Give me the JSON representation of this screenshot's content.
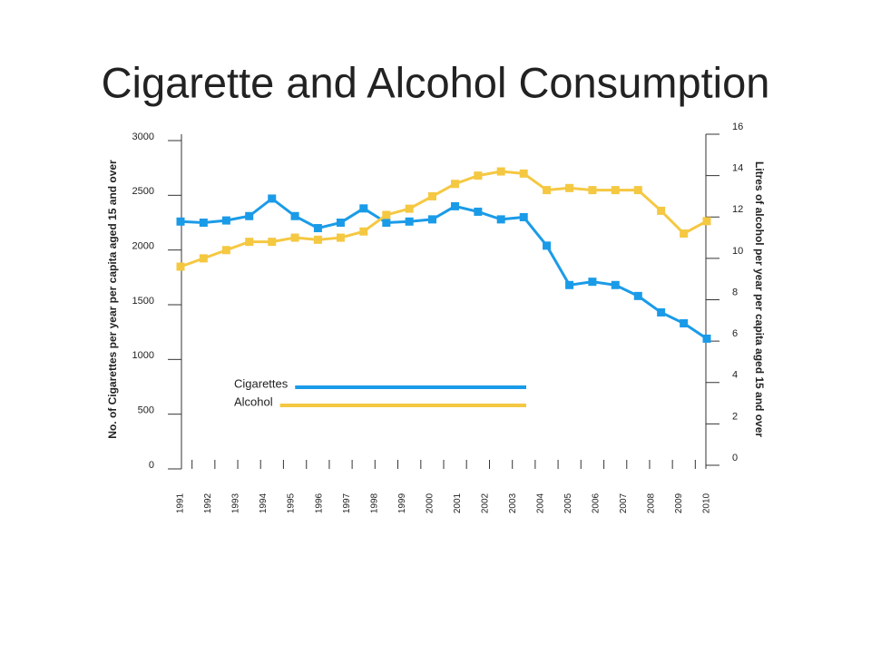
{
  "chart_data": {
    "type": "line",
    "title": "Cigarette and Alcohol Consumption",
    "ylabel": "No. of Cigarettes per year per capita aged 15 and over",
    "y2label": "Litres of alcohol per year per capita aged 15 and over",
    "x": [
      1991,
      1991.83,
      1992.65,
      1993.48,
      1994.3,
      1995.13,
      1995.96,
      1996.78,
      1997.61,
      1998.43,
      1999.26,
      2000.09,
      2000.91,
      2001.74,
      2002.57,
      2003.39,
      2004.22,
      2005.04,
      2005.87,
      2006.7,
      2007.52,
      2008.35,
      2009.17,
      2010
    ],
    "xlim": [
      1991,
      2010
    ],
    "xticks": [
      1991,
      1992,
      1993,
      1994,
      1995,
      1996,
      1997,
      1998,
      1999,
      2000,
      2001,
      2002,
      2003,
      2004,
      2005,
      2006,
      2007,
      2008,
      2009,
      2010
    ],
    "ylim": [
      0,
      3000
    ],
    "yticks": [
      0,
      500,
      1000,
      1500,
      2000,
      2500,
      3000
    ],
    "y2lim": [
      0,
      16
    ],
    "y2ticks": [
      0,
      2,
      4,
      6,
      8,
      10,
      12,
      14,
      16
    ],
    "legend": "lower left",
    "series": [
      {
        "name": "Cigarettes",
        "color": "#1a9be8",
        "values": [
          2260,
          2250,
          2270,
          2310,
          2470,
          2310,
          2200,
          2250,
          2380,
          2250,
          2260,
          2280,
          2400,
          2350,
          2280,
          2300,
          2040,
          1680,
          1710,
          1680,
          1580,
          1430,
          1330,
          1190
        ]
      },
      {
        "name": "Alcohol",
        "color": "#f5c842",
        "axis": "y2",
        "values": [
          9.6,
          10.0,
          10.4,
          10.8,
          10.8,
          11.0,
          10.9,
          11.0,
          11.3,
          12.1,
          12.4,
          13.0,
          13.6,
          14.0,
          14.2,
          14.1,
          13.3,
          13.4,
          13.3,
          13.3,
          13.3,
          12.3,
          11.2,
          11.8
        ]
      }
    ]
  }
}
